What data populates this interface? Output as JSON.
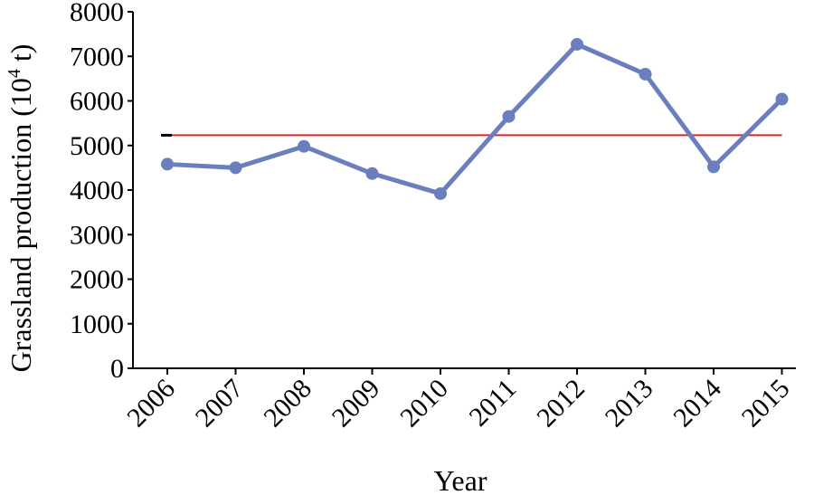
{
  "chart_data": {
    "type": "line",
    "title": "",
    "xlabel": "Year",
    "ylabel": "Grassland production (10",
    "ylabel_sup": "4",
    "ylabel_unit": " t)",
    "ylim": [
      0,
      8000
    ],
    "yticks": [
      "0",
      "1000",
      "2000",
      "3000",
      "4000",
      "5000",
      "6000",
      "7000",
      "8000"
    ],
    "categories": [
      "2006",
      "2007",
      "2008",
      "2009",
      "2010",
      "2011",
      "2012",
      "2013",
      "2014",
      "2015"
    ],
    "series": [
      {
        "values": [
          4580,
          4500,
          4980,
          4370,
          3920,
          5650,
          7270,
          6600,
          4520,
          6040
        ],
        "color": "#6b7fbf"
      }
    ],
    "reference_line": {
      "value": 5230,
      "color": "#d9252b"
    },
    "grid": false,
    "legend": "none"
  }
}
